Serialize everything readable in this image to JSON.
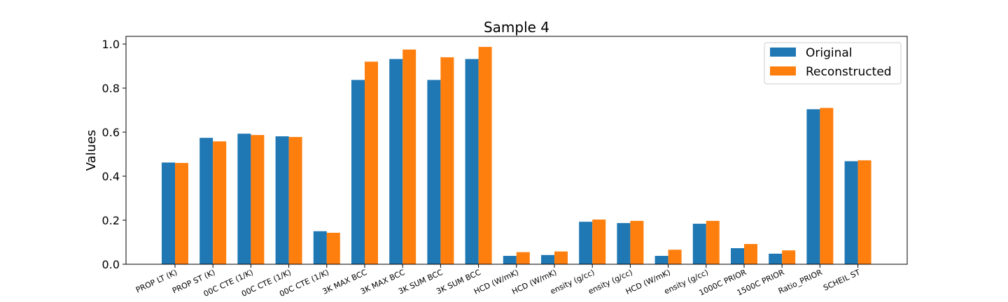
{
  "chart_data": {
    "type": "bar",
    "title": "Sample 4",
    "xlabel": "",
    "ylabel": "Values",
    "ylim": [
      0,
      1.035
    ],
    "yticks": [
      "0.0",
      "0.2",
      "0.4",
      "0.6",
      "0.8",
      "1.0"
    ],
    "ytick_values": [
      0.0,
      0.2,
      0.4,
      0.6,
      0.8,
      1.0
    ],
    "categories": [
      "PROP LT (K)",
      "PROP ST (K)",
      "00C CTE (1/K)",
      "00C CTE (1/K)",
      "00C CTE (1/K)",
      "3K MAX BCC",
      "3K MAX BCC",
      "3K SUM BCC",
      "3K SUM BCC",
      "HCD (W/mK)",
      "HCD (W/mK)",
      "ensity (g/cc)",
      "ensity (g/cc)",
      "HCD (W/mK)",
      "ensity (g/cc)",
      "1000C PRIOR",
      "1500C PRIOR",
      "Ratio_PRIOR",
      "SCHEIL ST"
    ],
    "series": [
      {
        "name": "Original",
        "color": "#1f77b4",
        "values": [
          0.462,
          0.574,
          0.593,
          0.581,
          0.15,
          0.837,
          0.932,
          0.837,
          0.932,
          0.038,
          0.042,
          0.193,
          0.187,
          0.038,
          0.184,
          0.073,
          0.048,
          0.704,
          0.468
        ]
      },
      {
        "name": "Reconstructed",
        "color": "#ff7f0e",
        "values": [
          0.46,
          0.558,
          0.587,
          0.578,
          0.143,
          0.92,
          0.975,
          0.94,
          0.987,
          0.055,
          0.058,
          0.203,
          0.197,
          0.066,
          0.197,
          0.092,
          0.063,
          0.71,
          0.472
        ]
      }
    ],
    "legend_position": "upper-right",
    "grid": false
  }
}
